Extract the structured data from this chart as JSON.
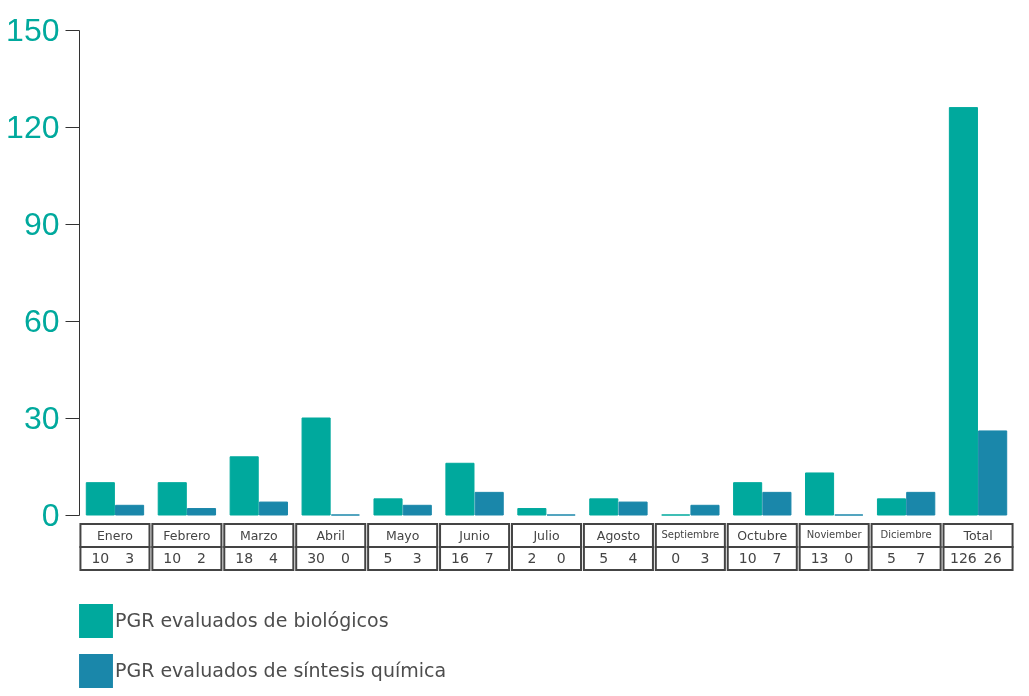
{
  "chart_data": {
    "type": "bar",
    "categories": [
      "Enero",
      "Febrero",
      "Marzo",
      "Abril",
      "Mayo",
      "Junio",
      "Julio",
      "Agosto",
      "Septiembre",
      "Octubre",
      "Noviember",
      "Diciembre",
      "Total"
    ],
    "series": [
      {
        "name": "PGR evaluados de biológicos",
        "color": "#00a99d",
        "values": [
          10,
          10,
          18,
          30,
          5,
          16,
          2,
          5,
          0,
          10,
          13,
          5,
          126
        ]
      },
      {
        "name": "PGR evaluados de síntesis química",
        "color": "#1a87aa",
        "values": [
          3,
          2,
          4,
          0,
          3,
          7,
          0,
          4,
          3,
          7,
          0,
          7,
          26
        ]
      }
    ],
    "ylim": [
      0,
      150
    ],
    "yticks": [
      0,
      30,
      60,
      90,
      120,
      150
    ],
    "grid": false,
    "legend": "bottom",
    "data_labels": true
  }
}
